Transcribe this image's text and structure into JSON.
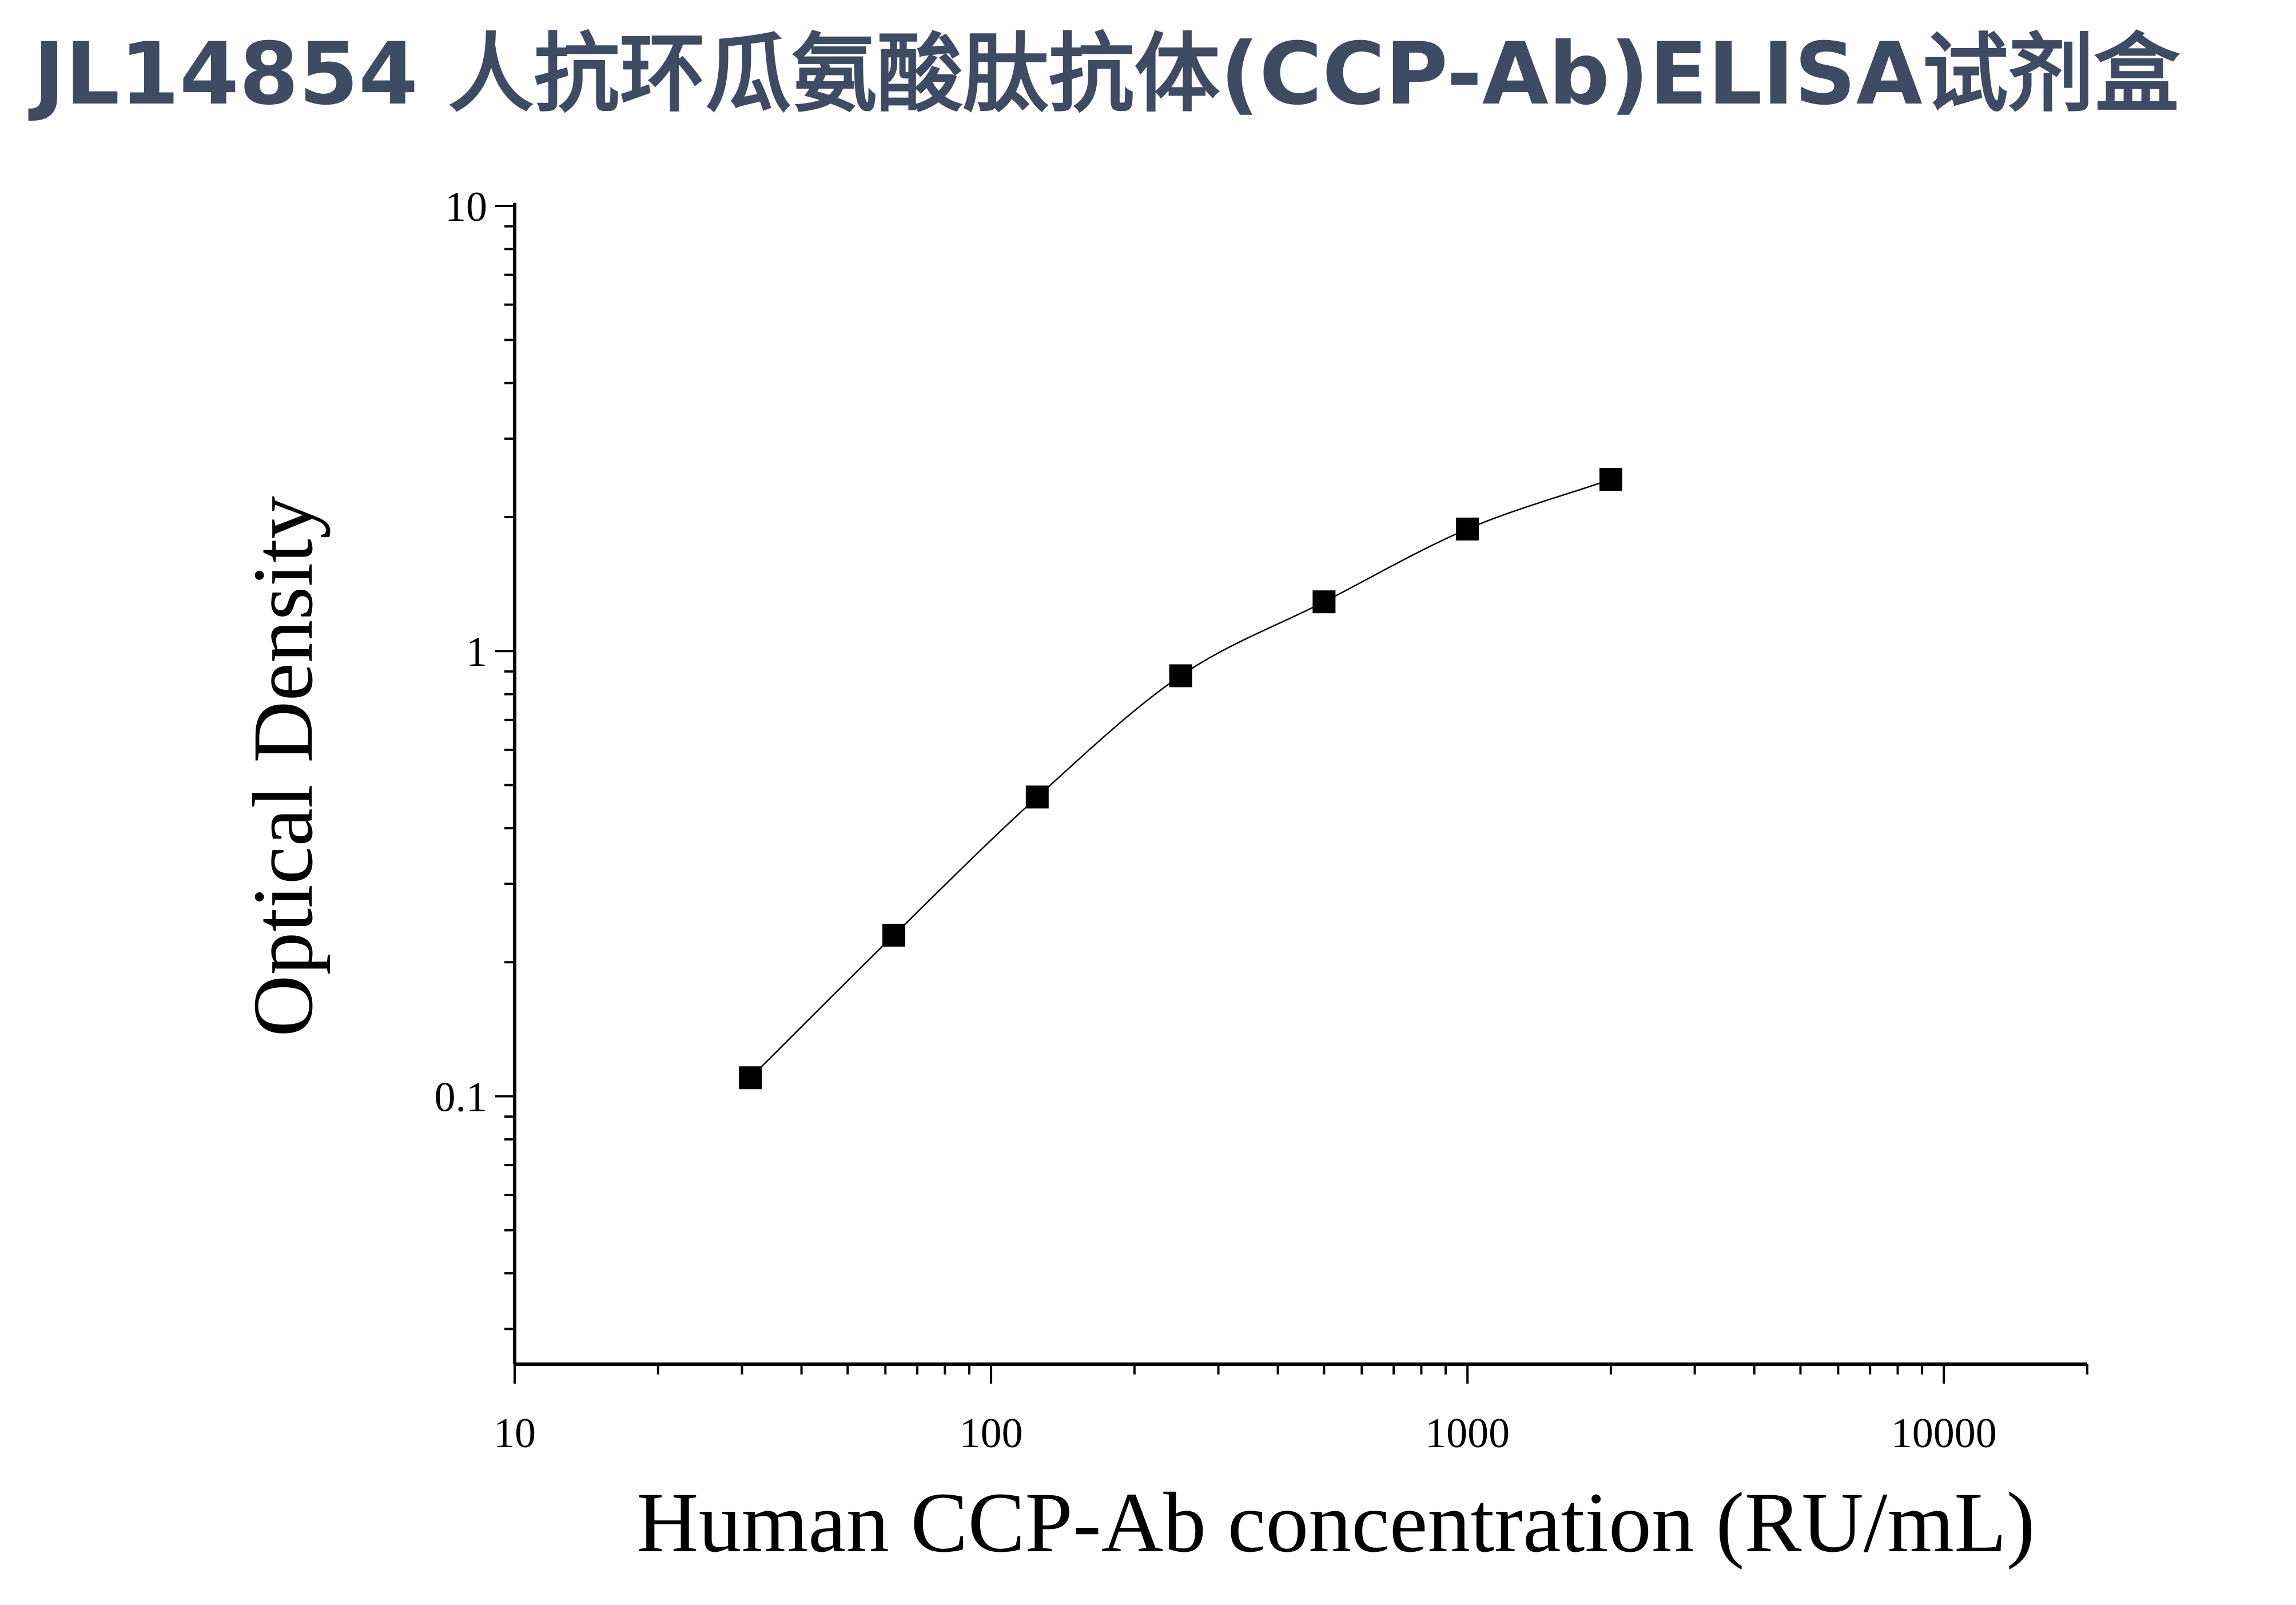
{
  "page": {
    "title": "JL14854 人抗环瓜氨酸肽抗体(CCP-Ab)ELISA试剂盒",
    "title_color": "#3d4b63"
  },
  "chart_data": {
    "type": "scatter",
    "title": "JL14854 人抗环瓜氨酸肽抗体(CCP-Ab)ELISA试剂盒",
    "xlabel": "Human CCP-Ab concentration (RU/mL)",
    "ylabel": "Optical Density",
    "x_scale": "log",
    "y_scale": "log",
    "xlim": [
      10,
      20000
    ],
    "ylim": [
      0.025,
      10
    ],
    "x_ticks": [
      10,
      100,
      1000,
      10000
    ],
    "x_tick_labels": [
      "10",
      "100",
      "1000",
      "10000"
    ],
    "y_ticks": [
      0.1,
      1,
      10
    ],
    "y_tick_labels": [
      "0.1",
      "1",
      "10"
    ],
    "grid": false,
    "legend": "none",
    "series": [
      {
        "marker": "square",
        "color": "#000000",
        "x": [
          31.25,
          62.5,
          125,
          250,
          500,
          1000,
          2000
        ],
        "y": [
          0.11,
          0.23,
          0.47,
          0.88,
          1.29,
          1.88,
          2.43
        ]
      }
    ],
    "fit_curve": {
      "type": "line",
      "color": "#000000",
      "x_range": [
        31.25,
        2000
      ]
    }
  }
}
